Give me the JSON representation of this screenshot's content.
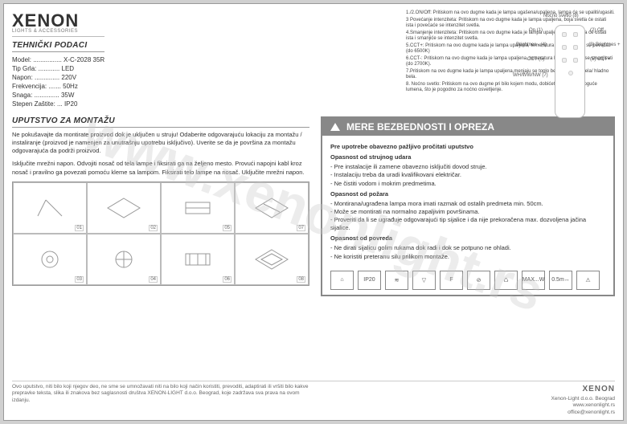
{
  "brand": "XENON",
  "brand_sub": "LIGHTS & ACCESSORIES",
  "watermark": "www.xenonlight.rs",
  "tech": {
    "title": "TEHNIČKI PODACI",
    "rows": [
      {
        "k": "Model: ................",
        "v": "X-C-2028 35R"
      },
      {
        "k": "Tip Grla: ............",
        "v": "LED"
      },
      {
        "k": "Napon: ..............",
        "v": "220V"
      },
      {
        "k": "Frekvencija: .......",
        "v": "50Hz"
      },
      {
        "k": "Snaga: ..............",
        "v": "35W"
      },
      {
        "k": "Stepen Zaštite: ...",
        "v": "IP20"
      }
    ]
  },
  "remote": {
    "lines": [
      "1./2.ON/Off: Pritiskom na ovo dugme kada je lampa ugašena/upaljena, lampa će se upaliti/ugasiti.",
      "3 Povećanje intenziteta: Pritiskom na ovo dugme kada je lampa upaljena, boja svetla će ostati ista i povećaće se intenzitet svetla.",
      "4.Smanjenje intenziteta: Pritiskom na ovo dugme kada je lampa upaljena, boja svetla će ostati ista i smanjiće se intenzitet svetla.",
      "5.CCT+: Pritiskom na ovo dugme kada je lampa upaljena, temeratura boje svetla će se povećati (do 6500K)",
      "6.CCT-: Pritiskom na ovo dugme kada je lampa upaljena, temeratura boje svetla će se smanjivati (do 2700K).",
      "7.Pritiskom na ovo dugme kada je lampa upaljena,menjaju se toplo belo/neutralno bela/ hladno bela.",
      "8. Noćno svetlo: Pritiskom na ovo dugme pri bilo kojem modu, dobićete najmanje moguće lumena, što je pogodno za noćno osvetljenje."
    ],
    "labels": {
      "night": "Noćno svetlo (8)",
      "on": "On (1)",
      "off": "(2) Off",
      "brm": "Brightnes - (4)",
      "brp": "(3) Brightnes +",
      "cctm": "CCT-(6)",
      "cctp": "(5) CCT+",
      "wh": "WH/WW/NW (7)"
    }
  },
  "mont": {
    "title": "UPUTSTVO ZA MONTAŽU",
    "p1": "Ne pokušavajte da montirate proizvod dok je uključen u struju! Odaberite odgovarajuću lokaciju za montažu / instaliranje (proizvod je namenjen za unutrašnju upotrebu isključivo). Uverite se da je površina za montažu odgovarajuća da podrži proizvod.",
    "p2": "Isključite mrežni napon. Odvojiti nosač od tela lampe i fiksirati ga na željeno mesto. Provući napojni kabl kroz nosač i pravilno ga povezati pomoću kleme sa lampom. Fiksirati telo lampe na nosač. Uključite mrežni napon.",
    "nums": [
      "01",
      "02",
      "05",
      "07",
      "03",
      "04",
      "06",
      "08"
    ]
  },
  "safety": {
    "title": "MERE BEZBEDNOSTI I OPREZA",
    "sub": "Pre upotrebe obavezno pažljivo pročitati uputstvo",
    "s1": "Opasnost od strujnog udara",
    "s1i": [
      "- Pre instalacije ili zamene obavezno isključiti dovod struje.",
      "- Instalaciju treba da uradi kvalifikovani električar.",
      "- Ne čistiti vodom i mokrim predmetima."
    ],
    "s2": "Opasnost od požara",
    "s2i": [
      "- Montirana/ugrađena lampa mora imati razmak od ostalih predmeta min. 50cm.",
      "- Može se montirati na normalno zapaljivim površinama.",
      "- Proveriti da li se ugrađuje odgovarajući tip sijalice i da nije prekoračena max. dozvoljena jačina sijalice."
    ],
    "s3": "Opasnost od povreda",
    "s3i": [
      "- Ne dirati sijalicu golim rukama dok radi i dok se potpuno ne ohladi.",
      "- Ne koristiti preteranu silu prilikom montaže."
    ],
    "icons": [
      "⌂",
      "IP20",
      "≋",
      "▽",
      "F",
      "⊘",
      "♺",
      "MAX...W",
      "0.5m↔",
      "⚠"
    ]
  },
  "footer": {
    "left": "Ovo uputstvo, niti bilo koji njegov deo, ne sme se umnožavati niti na bilo koji način koristiti, prevoditi, adaptirati ili vršiti bilo kakve prepravke teksta, slika ili znakova bez saglasnosti društva XENON-LIGHT d.o.o. Beograd, koje zadržava sva prava na ovom izdanju.",
    "brand": "XENON",
    "r1": "Xenon-Light d.o.o. Beograd",
    "r2": "www.xenonlight.rs",
    "r3": "office@xenonlight.rs"
  }
}
